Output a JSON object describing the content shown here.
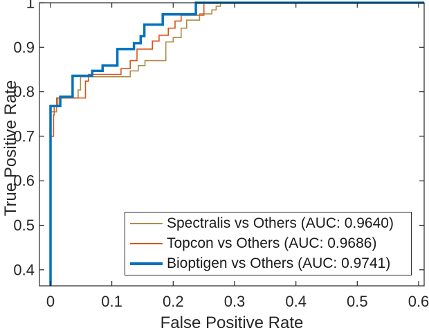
{
  "figure": {
    "background": "#ffffff",
    "axes_color": "#262626",
    "text_color": "#262626"
  },
  "chart_data": {
    "type": "line",
    "subtype": "roc-step-curves",
    "title": "",
    "xlabel": "False Positive Rate",
    "ylabel": "True Positive Rate",
    "xlim": [
      -0.018,
      0.609
    ],
    "ylim": [
      0.364,
      1.0
    ],
    "grid": false,
    "box": true,
    "xticks": {
      "values": [
        0,
        0.1,
        0.2,
        0.3,
        0.4,
        0.5,
        0.6
      ],
      "labels": [
        "0",
        "0.1",
        "0.2",
        "0.3",
        "0.4",
        "0.5",
        "0.6"
      ]
    },
    "yticks": {
      "values": [
        0.4,
        0.5,
        0.6,
        0.7,
        0.8,
        0.9,
        1.0
      ],
      "labels": [
        "0.4",
        "0.5",
        "0.6",
        "0.7",
        "0.8",
        "0.9",
        "1"
      ]
    },
    "legend": {
      "position": "south-inside",
      "border_color": "#262626",
      "items": [
        {
          "label": "Spectralis vs Others (AUC: 0.9640)",
          "color": "#AC8B48",
          "line_width": 2
        },
        {
          "label": "Topcon vs Others (AUC: 0.9686)",
          "color": "#D95319",
          "line_width": 2
        },
        {
          "label": "Bioptigen vs Others (AUC: 0.9741)",
          "color": "#0072BD",
          "line_width": 4
        }
      ]
    },
    "series": [
      {
        "name": "Spectralis vs Others",
        "auc": 0.964,
        "color": "#AC8B48",
        "line_width": 1.6,
        "points": [
          [
            0,
            0.364
          ],
          [
            0,
            0.755
          ],
          [
            0.01,
            0.755
          ],
          [
            0.01,
            0.77
          ],
          [
            0.012,
            0.77
          ],
          [
            0.012,
            0.786
          ],
          [
            0.045,
            0.786
          ],
          [
            0.045,
            0.804
          ],
          [
            0.049,
            0.804
          ],
          [
            0.049,
            0.834
          ],
          [
            0.13,
            0.834
          ],
          [
            0.13,
            0.847
          ],
          [
            0.143,
            0.847
          ],
          [
            0.143,
            0.859
          ],
          [
            0.154,
            0.859
          ],
          [
            0.154,
            0.87
          ],
          [
            0.188,
            0.87
          ],
          [
            0.188,
            0.912
          ],
          [
            0.2,
            0.912
          ],
          [
            0.2,
            0.922
          ],
          [
            0.213,
            0.922
          ],
          [
            0.213,
            0.943
          ],
          [
            0.222,
            0.943
          ],
          [
            0.222,
            0.961
          ],
          [
            0.243,
            0.961
          ],
          [
            0.243,
            0.975
          ],
          [
            0.263,
            0.975
          ],
          [
            0.263,
            0.984
          ],
          [
            0.27,
            0.984
          ],
          [
            0.27,
            0.992
          ],
          [
            0.277,
            0.992
          ],
          [
            0.277,
            1.0
          ],
          [
            0.609,
            1.0
          ]
        ]
      },
      {
        "name": "Topcon vs Others",
        "auc": 0.9686,
        "color": "#D95319",
        "line_width": 1.6,
        "points": [
          [
            0,
            0.364
          ],
          [
            0,
            0.7
          ],
          [
            0.005,
            0.7
          ],
          [
            0.005,
            0.748
          ],
          [
            0.006,
            0.748
          ],
          [
            0.006,
            0.768
          ],
          [
            0.01,
            0.768
          ],
          [
            0.01,
            0.786
          ],
          [
            0.057,
            0.786
          ],
          [
            0.057,
            0.824
          ],
          [
            0.062,
            0.824
          ],
          [
            0.062,
            0.839
          ],
          [
            0.115,
            0.839
          ],
          [
            0.115,
            0.852
          ],
          [
            0.13,
            0.852
          ],
          [
            0.13,
            0.87
          ],
          [
            0.141,
            0.87
          ],
          [
            0.141,
            0.896
          ],
          [
            0.166,
            0.896
          ],
          [
            0.166,
            0.914
          ],
          [
            0.177,
            0.914
          ],
          [
            0.177,
            0.927
          ],
          [
            0.192,
            0.927
          ],
          [
            0.192,
            0.943
          ],
          [
            0.203,
            0.943
          ],
          [
            0.203,
            0.959
          ],
          [
            0.213,
            0.959
          ],
          [
            0.213,
            0.972
          ],
          [
            0.25,
            0.972
          ],
          [
            0.25,
            1.0
          ],
          [
            0.609,
            1.0
          ]
        ]
      },
      {
        "name": "Bioptigen vs Others",
        "auc": 0.9741,
        "color": "#0072BD",
        "line_width": 3.5,
        "points": [
          [
            0,
            0.364
          ],
          [
            0,
            0.768
          ],
          [
            0.016,
            0.768
          ],
          [
            0.016,
            0.789
          ],
          [
            0.036,
            0.789
          ],
          [
            0.036,
            0.836
          ],
          [
            0.068,
            0.836
          ],
          [
            0.068,
            0.847
          ],
          [
            0.085,
            0.847
          ],
          [
            0.085,
            0.859
          ],
          [
            0.109,
            0.859
          ],
          [
            0.109,
            0.896
          ],
          [
            0.136,
            0.896
          ],
          [
            0.136,
            0.909
          ],
          [
            0.147,
            0.909
          ],
          [
            0.147,
            0.925
          ],
          [
            0.153,
            0.925
          ],
          [
            0.153,
            0.951
          ],
          [
            0.183,
            0.951
          ],
          [
            0.183,
            0.974
          ],
          [
            0.237,
            0.974
          ],
          [
            0.237,
            1.0
          ],
          [
            0.609,
            1.0
          ]
        ]
      }
    ]
  }
}
